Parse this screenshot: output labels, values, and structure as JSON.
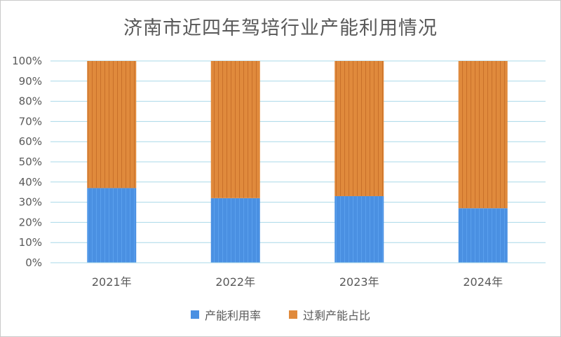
{
  "chart_data": {
    "type": "bar",
    "stacked": "percent",
    "title": "济南市近四年驾培行业产能利用情况",
    "categories": [
      "2021年",
      "2022年",
      "2023年",
      "2024年"
    ],
    "series": [
      {
        "name": "产能利用率",
        "color": "#4a90e2",
        "values": [
          37,
          32,
          33,
          27
        ]
      },
      {
        "name": "过剩产能占比",
        "color": "#e08a3c",
        "values": [
          63,
          68,
          67,
          73
        ]
      }
    ],
    "y_ticks": [
      "0%",
      "10%",
      "20%",
      "30%",
      "40%",
      "50%",
      "60%",
      "70%",
      "80%",
      "90%",
      "100%"
    ],
    "ylim": [
      0,
      100
    ],
    "grid": true,
    "legend_position": "bottom"
  }
}
